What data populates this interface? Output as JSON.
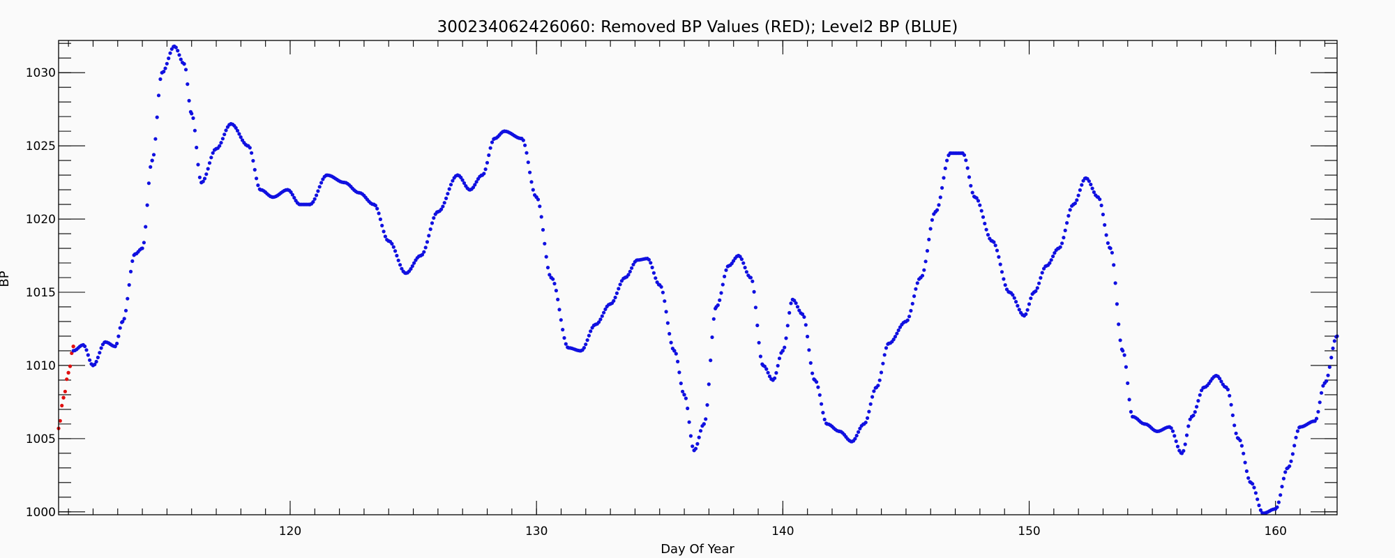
{
  "chart_data": {
    "type": "scatter",
    "title": "300234062426060: Removed BP Values (RED); Level2 BP (BLUE)",
    "xlabel": "Day Of Year",
    "ylabel": "BP",
    "xlim": [
      110.6,
      162.5
    ],
    "ylim": [
      999.8,
      1032.2
    ],
    "xticks": [
      120,
      130,
      140,
      150,
      160
    ],
    "yticks": [
      1000,
      1005,
      1010,
      1015,
      1020,
      1025,
      1030
    ],
    "x_minor_step": 1,
    "y_minor_step": 1,
    "grid": false,
    "series": [
      {
        "color": "#e01010",
        "x": [
          110.6,
          110.8,
          111.0,
          111.2
        ],
        "y": [
          1005.7,
          1007.8,
          1009.5,
          1011.3
        ]
      },
      {
        "color": "#1010e0",
        "x": [
          111.2,
          111.6,
          112.0,
          112.5,
          112.9,
          113.2,
          113.7,
          114.0,
          114.4,
          114.8,
          115.3,
          115.7,
          116.0,
          116.4,
          117.0,
          117.6,
          118.3,
          118.8,
          119.3,
          119.9,
          120.4,
          120.8,
          121.5,
          122.2,
          122.8,
          123.4,
          124.0,
          124.7,
          125.3,
          126.0,
          126.8,
          127.3,
          127.8,
          128.3,
          128.7,
          129.4,
          130.0,
          130.6,
          131.3,
          131.8,
          132.4,
          133.0,
          133.6,
          134.1,
          134.5,
          135.0,
          135.6,
          136.0,
          136.4,
          136.8,
          137.3,
          137.8,
          138.2,
          138.7,
          139.2,
          139.6,
          140.0,
          140.4,
          140.8,
          141.3,
          141.8,
          142.3,
          142.8,
          143.3,
          143.8,
          144.3,
          145.0,
          145.6,
          146.2,
          146.8,
          147.3,
          147.8,
          148.5,
          149.2,
          149.8,
          150.2,
          150.7,
          151.2,
          151.8,
          152.3,
          152.8,
          153.3,
          153.8,
          154.2,
          154.7,
          155.2,
          155.7,
          156.2,
          156.6,
          157.1,
          157.6,
          158.0,
          158.5,
          159.0,
          159.5,
          160.0,
          160.5,
          161.0,
          161.6,
          162.0,
          162.5
        ],
        "y": [
          1011.0,
          1011.4,
          1010.0,
          1011.6,
          1011.3,
          1013.0,
          1017.6,
          1018.0,
          1024.0,
          1030.0,
          1031.8,
          1030.6,
          1027.2,
          1022.5,
          1024.8,
          1026.5,
          1025.0,
          1022.0,
          1021.5,
          1022.0,
          1021.0,
          1021.0,
          1023.0,
          1022.5,
          1021.8,
          1021.0,
          1018.5,
          1016.3,
          1017.5,
          1020.5,
          1023.0,
          1022.0,
          1023.0,
          1025.5,
          1026.0,
          1025.5,
          1021.5,
          1016.0,
          1011.2,
          1011.0,
          1012.8,
          1014.2,
          1016.0,
          1017.2,
          1017.3,
          1015.5,
          1011.0,
          1008.0,
          1004.2,
          1006.0,
          1014.0,
          1016.8,
          1017.5,
          1016.0,
          1010.0,
          1009.0,
          1011.0,
          1014.5,
          1013.5,
          1009.0,
          1006.0,
          1005.5,
          1004.8,
          1006.0,
          1008.5,
          1011.5,
          1013.0,
          1016.0,
          1020.5,
          1024.5,
          1024.5,
          1021.5,
          1018.5,
          1015.0,
          1013.4,
          1015.0,
          1016.8,
          1018.0,
          1021.0,
          1022.8,
          1021.5,
          1018.0,
          1011.0,
          1006.5,
          1006.0,
          1005.5,
          1005.8,
          1004.0,
          1006.5,
          1008.5,
          1009.3,
          1008.5,
          1005.0,
          1002.0,
          999.9,
          1000.2,
          1003.0,
          1005.8,
          1006.2,
          1008.8,
          1012.0
        ]
      }
    ]
  }
}
